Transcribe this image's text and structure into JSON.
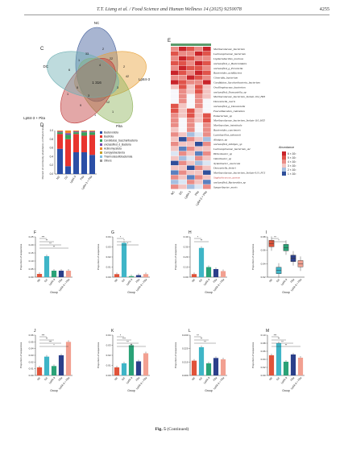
{
  "header": {
    "journal": "T.T. Liang et al. / Food Science and Human Wellness 14 (2025) 9250078",
    "page": "4255"
  },
  "venn": {
    "letter": "C",
    "sets": [
      "NC",
      "DC",
      "Lp84-3",
      "Pita",
      "Lp84-3 + Pita"
    ],
    "set_colors": [
      "#3d5a99",
      "#e8a23a",
      "#8fb35a",
      "#c23b3b",
      "#6fb0b4"
    ],
    "counts": [
      "1 316",
      "42",
      "33",
      "22",
      "12",
      "9",
      "6",
      "5",
      "4",
      "3",
      "3",
      "2",
      "2",
      "1",
      "1",
      "1",
      "1"
    ]
  },
  "stacked_bar": {
    "letter": "D",
    "ylabel": "Percent of community abundance on Phylum level",
    "categories": [
      "NC",
      "DC",
      "Lp84-3",
      "Pita",
      "Lp84-3 + Pita"
    ],
    "yticks": [
      "0.0",
      "0.2",
      "0.4",
      "0.6",
      "0.8",
      "1.0"
    ],
    "legend": [
      "Bacteroidota",
      "Bacillota",
      "Candidatus_Saccharibacteria",
      "unclassified_d_Bacteria",
      "Actinomycetota",
      "Campylobacterota",
      "Thermodesulfobacteriota",
      "Others"
    ],
    "colors": [
      "#2b4fa6",
      "#e8342e",
      "#3aa35a",
      "#7a4fb3",
      "#f08a2a",
      "#c5a028",
      "#7fbfe0",
      "#999999"
    ]
  },
  "heatmap": {
    "letter": "E",
    "rows": [
      "Muribaculaceae_bacterium",
      "Lachnospiraceae_bacterium",
      "Ligilactobacillus_murinus",
      "unclassified_o_Bacteroidales",
      "unclassified_g_Prevotella",
      "Bacteroides_acidifaciens",
      "Clostridia_bacterium",
      "Candidatus_Saccharibacteria_bacterium",
      "Oscillospiraceae_bacterium",
      "unclassified_Duncaniella_sp",
      "Muribaculaceae_bacterium_Isolate-104_HZI",
      "Duncaniella_muris",
      "unclassified_g_Duncaniella",
      "Faecalibaculum_rodentium",
      "Eubacterium_sp",
      "Muribaculaceae_bacterium_Isolate-110_HZI",
      "Muribaculum_intestinale",
      "Bacteroides_caecimuris",
      "Lactobacillus_johnsonii",
      "Alistipes_sp",
      "unclassified_Alistipes_sp",
      "Lachnospiraceae_bacterium_A2",
      "Helicobacter_sp",
      "Odoribacter_sp",
      "Xylanibacter_caecicola",
      "Duncaniella_freteri",
      "Muribaculaceae_bacterium_Isolate-013_NCI",
      "Staphylococcus_aureus",
      "unclassified_Bacteroides_sp",
      "Sangeribacter_muris"
    ],
    "cols": [
      "NC",
      "DC",
      "Lp84-3",
      "Pita",
      "Lp84-3 + Pita"
    ],
    "legend_title": "Abundance",
    "legend_ticks": [
      "6 × 10²",
      "5 × 10²",
      "4 × 10²",
      "3 × 10²",
      "2 × 10²",
      "1 × 10²"
    ]
  },
  "panels_row1": [
    {
      "letter": "F",
      "ylabel": "Proportion of sequences",
      "xlabel": "Group",
      "yticks": [
        "0.00",
        "0.05",
        "0.10",
        "0.15",
        "0.20",
        "0.25"
      ],
      "values": [
        0.02,
        0.13,
        0.04,
        0.04,
        0.04
      ],
      "sig": [
        "***",
        "**",
        "**",
        "**"
      ]
    },
    {
      "letter": "G",
      "ylabel": "Proportion of sequences",
      "xlabel": "Group",
      "yticks": [
        "0.00",
        "0.01",
        "0.02",
        "0.03",
        "0.04"
      ],
      "values": [
        0.003,
        0.034,
        0.001,
        0.002,
        0.003
      ],
      "sig": [
        "*",
        "*",
        "*"
      ]
    },
    {
      "letter": "H",
      "ylabel": "Proportion of sequences",
      "xlabel": "Group",
      "yticks": [
        "0.00",
        "0.10",
        "0.20",
        "0.30",
        "0.40"
      ],
      "values": [
        0.03,
        0.29,
        0.1,
        0.08,
        0.06
      ],
      "sig": [
        "*",
        "**"
      ]
    },
    {
      "letter": "I",
      "ylabel": "Proportion of sequences",
      "xlabel": "Group",
      "yticks": [
        "0.02",
        "0.04",
        "0.06",
        "0.08"
      ],
      "values": [
        0.07,
        0.03,
        0.064,
        0.048,
        0.04
      ],
      "sig": [
        "**",
        "*"
      ]
    }
  ],
  "panels_row2": [
    {
      "letter": "J",
      "ylabel": "Proportion of sequences",
      "xlabel": "Group",
      "yticks": [
        "0.00",
        "0.01",
        "0.02",
        "0.03",
        "0.04",
        "0.05",
        "0.06"
      ],
      "values": [
        0.012,
        0.028,
        0.014,
        0.03,
        0.05
      ],
      "sig": [
        "***",
        "**",
        "***",
        "*"
      ]
    },
    {
      "letter": "K",
      "ylabel": "Proportion of sequences",
      "xlabel": "Group",
      "yticks": [
        "0.00",
        "0.01",
        "0.02",
        "0.03",
        "0.04"
      ],
      "values": [
        0.008,
        0.012,
        0.03,
        0.014,
        0.022
      ],
      "sig": [
        "*",
        "***",
        "**",
        "**"
      ]
    },
    {
      "letter": "L",
      "ylabel": "Proportion of sequences",
      "xlabel": "Group",
      "yticks": [
        "0.200",
        "0.210",
        "0.220",
        "0.230"
      ],
      "values": [
        0.211,
        0.221,
        0.209,
        0.213,
        0.212
      ],
      "sig": [
        "**",
        "**",
        "**"
      ]
    },
    {
      "letter": "M",
      "ylabel": "Proportion of sequences",
      "xlabel": "Group",
      "yticks": [
        "0.00",
        "0.02",
        "0.04",
        "0.06",
        "0.08",
        "0.10"
      ],
      "values": [
        0.05,
        0.08,
        0.034,
        0.052,
        0.044
      ],
      "sig": [
        "***",
        "**",
        "**",
        "**"
      ]
    }
  ],
  "bar_colors": [
    "#e0533a",
    "#3fb5c7",
    "#2aa277",
    "#2b3f8a",
    "#f2a091"
  ],
  "group_labels": [
    "NC",
    "DC",
    "Lp84-3",
    "Pita",
    "Lp84-3 + Pita"
  ],
  "caption": {
    "fig": "Fig. 5",
    "note": "(Continued)"
  }
}
